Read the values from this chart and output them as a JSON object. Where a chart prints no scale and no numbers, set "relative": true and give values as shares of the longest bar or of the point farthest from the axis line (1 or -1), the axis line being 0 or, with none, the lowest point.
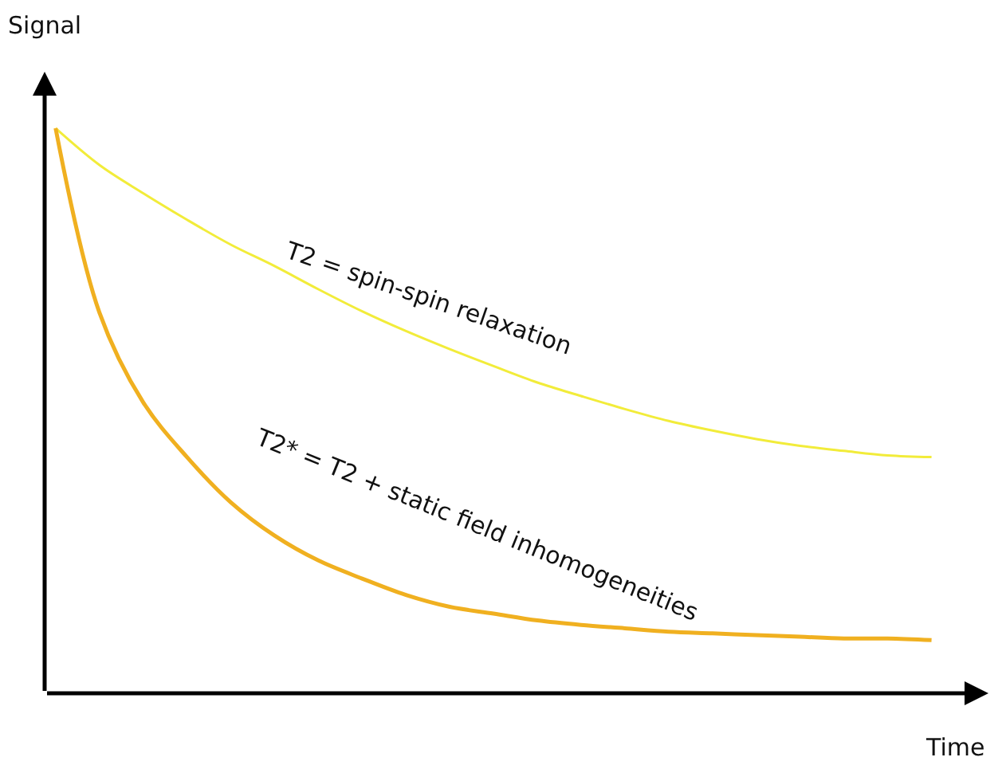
{
  "chart_data": {
    "type": "line",
    "relative": true,
    "xlabel": "Time",
    "ylabel": "Signal",
    "categories": [
      null,
      null,
      null,
      null,
      null,
      null,
      null,
      null,
      null,
      null,
      null,
      null,
      null,
      null,
      null,
      null,
      null,
      null,
      null,
      null,
      null
    ],
    "series": [
      {
        "color": "#f2ec3a",
        "values": [
          1,
          0.935,
          0.885,
          0.838,
          0.794,
          0.756,
          0.715,
          0.676,
          0.641,
          0.609,
          0.579,
          0.55,
          0.526,
          0.503,
          0.482,
          0.465,
          0.45,
          0.438,
          0.429,
          0.421,
          0.418
        ]
      },
      {
        "color": "#f0b020",
        "values": [
          1,
          0.674,
          0.515,
          0.418,
          0.338,
          0.279,
          0.235,
          0.203,
          0.174,
          0.153,
          0.141,
          0.129,
          0.121,
          0.115,
          0.109,
          0.106,
          0.103,
          0.1,
          0.097,
          0.097,
          0.094
        ]
      }
    ],
    "annotations": [
      "T2 = spin-spin relaxation",
      "T2* = T2 + static field inhomogeneities"
    ],
    "marker": "none",
    "line_style": "solid"
  }
}
